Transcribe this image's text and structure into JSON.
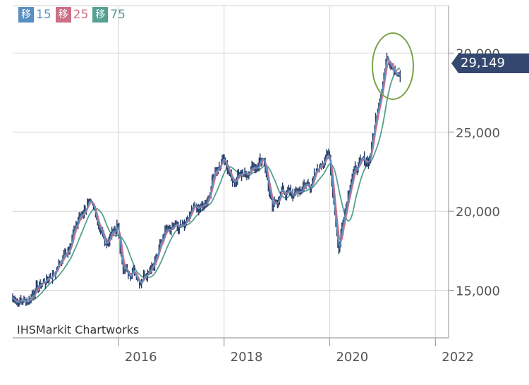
{
  "legend": [
    {
      "tag": "移",
      "period": "15",
      "color": "#5a8fc1"
    },
    {
      "tag": "移",
      "period": "25",
      "color": "#cd6f86"
    },
    {
      "tag": "移",
      "period": "75",
      "color": "#55a091"
    }
  ],
  "credit": "IHSMarkit Chartworks",
  "last_price_label": "29,149",
  "colors": {
    "candles": "#263a66",
    "grid": "#d9d9d9",
    "axis": "#a0a0a0",
    "highlight_circle": "#7aa34a",
    "price_tag": "#34486f"
  },
  "chart_data": {
    "type": "line",
    "title": "",
    "xlabel": "",
    "ylabel": "",
    "x_ticks": [
      "2016",
      "2018",
      "2020",
      "2022"
    ],
    "y_ticks": [
      "15,000",
      "20,000",
      "25,000",
      "30,000"
    ],
    "ylim": [
      12000,
      33000
    ],
    "xlim": [
      "2014-01",
      "2022-04"
    ],
    "legend_position": "top-left",
    "last_value": 29149,
    "series": [
      {
        "name": "price",
        "x": [
          "2014-01",
          "2014-04",
          "2014-07",
          "2014-10",
          "2015-01",
          "2015-04",
          "2015-06",
          "2015-08",
          "2015-10",
          "2016-01",
          "2016-02",
          "2016-04",
          "2016-06",
          "2016-08",
          "2016-10",
          "2016-12",
          "2017-02",
          "2017-04",
          "2017-06",
          "2017-09",
          "2017-11",
          "2018-01",
          "2018-03",
          "2018-05",
          "2018-07",
          "2018-10",
          "2018-12",
          "2019-02",
          "2019-05",
          "2019-07",
          "2019-09",
          "2019-12",
          "2020-01",
          "2020-03",
          "2020-04",
          "2020-06",
          "2020-08",
          "2020-10",
          "2020-12",
          "2021-02",
          "2021-03",
          "2021-05"
        ],
        "values": [
          14500,
          14300,
          15300,
          16000,
          17300,
          19500,
          20500,
          19700,
          18000,
          19000,
          16200,
          16300,
          15700,
          16500,
          17300,
          19200,
          19100,
          18900,
          20000,
          20300,
          22600,
          23500,
          21700,
          22600,
          22600,
          23500,
          20000,
          21300,
          21000,
          21500,
          21800,
          23600,
          23200,
          17500,
          19500,
          22300,
          23000,
          23300,
          26800,
          29800,
          29500,
          28500
        ]
      }
    ],
    "ma_periods": [
      "15",
      "25",
      "75"
    ]
  }
}
